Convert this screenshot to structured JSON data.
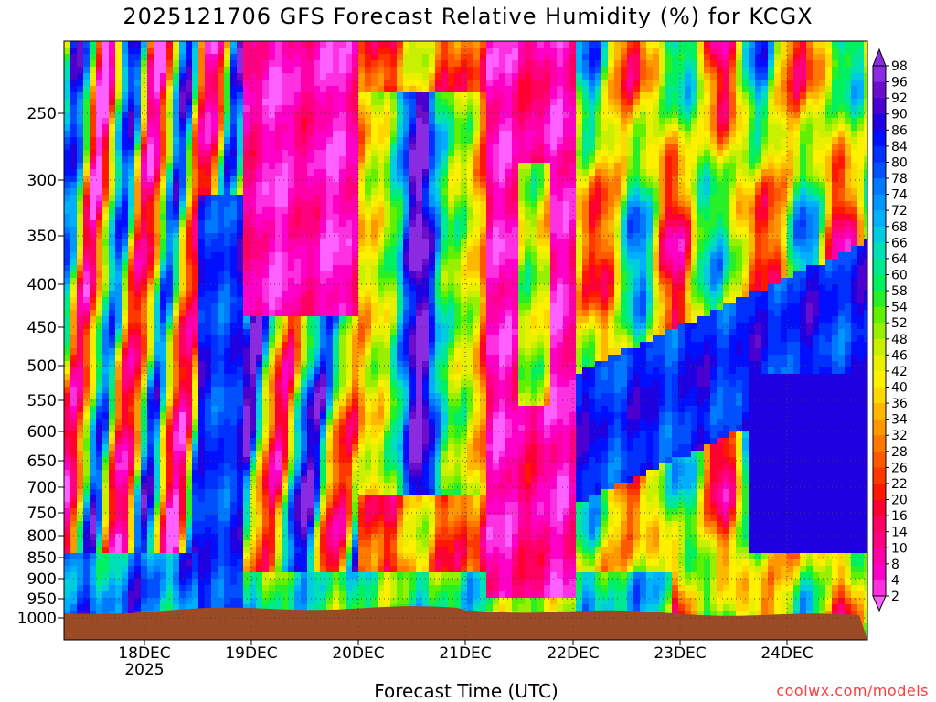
{
  "header": {
    "title": "2025121706 GFS Forecast Relative Humidity (%) for KCGX",
    "credit": "coolwx.com/models"
  },
  "colors": {
    "ground": "#9a4a24",
    "grid": "#444444"
  },
  "chart_data": {
    "type": "heatmap",
    "title": "2025121706 GFS Forecast Relative Humidity (%) for KCGX",
    "xlabel": "Forecast Time (UTC)",
    "ylabel": "",
    "y_axis": {
      "scale": "pressure (log)",
      "ticks": [
        250,
        300,
        350,
        400,
        450,
        500,
        550,
        600,
        650,
        700,
        750,
        800,
        850,
        900,
        950,
        1000
      ],
      "range": [
        1000,
        200
      ]
    },
    "x_axis": {
      "ticks": [
        {
          "label": "18DEC",
          "sublabel": "2025"
        },
        {
          "label": "19DEC",
          "sublabel": ""
        },
        {
          "label": "20DEC",
          "sublabel": ""
        },
        {
          "label": "21DEC",
          "sublabel": ""
        },
        {
          "label": "22DEC",
          "sublabel": ""
        },
        {
          "label": "23DEC",
          "sublabel": ""
        },
        {
          "label": "24DEC",
          "sublabel": ""
        }
      ]
    },
    "grid": true,
    "colorbar": {
      "labels": [
        98,
        96,
        92,
        90,
        86,
        84,
        80,
        78,
        74,
        72,
        68,
        66,
        64,
        60,
        58,
        54,
        52,
        48,
        46,
        42,
        40,
        36,
        34,
        32,
        28,
        26,
        22,
        20,
        16,
        14,
        10,
        8,
        4,
        2
      ],
      "colors": [
        "#8a2be2",
        "#6a0dcc",
        "#4b00d0",
        "#1e00e0",
        "#0010ff",
        "#0030ff",
        "#0050ff",
        "#0078ff",
        "#0096ff",
        "#00b0ff",
        "#00cce0",
        "#00e0b8",
        "#00e890",
        "#00f060",
        "#28f028",
        "#60f000",
        "#98f000",
        "#c8f000",
        "#e8f000",
        "#fff000",
        "#ffd800",
        "#ffb800",
        "#ff9800",
        "#ff7800",
        "#ff5800",
        "#ff3800",
        "#ff1800",
        "#ff0030",
        "#ff0060",
        "#ff0080",
        "#ff00a8",
        "#ff00c8",
        "#ff30e0",
        "#ff60ff"
      ],
      "legend_placement": "right"
    },
    "regimes": [
      {
        "time": "17DEC",
        "profile": "mixed dry and moist layers, moist near surface"
      },
      {
        "time": "19DEC",
        "profile": "moist mid levels, very dry upper levels"
      },
      {
        "time": "20DEC",
        "profile": "deep moist layer 350-700"
      },
      {
        "time": "21DEC",
        "profile": "dry throughout"
      },
      {
        "time": "23DEC",
        "profile": "moist low levels rising, mixed upper"
      },
      {
        "time": "24DEC",
        "profile": "moist mid and low levels"
      }
    ]
  }
}
